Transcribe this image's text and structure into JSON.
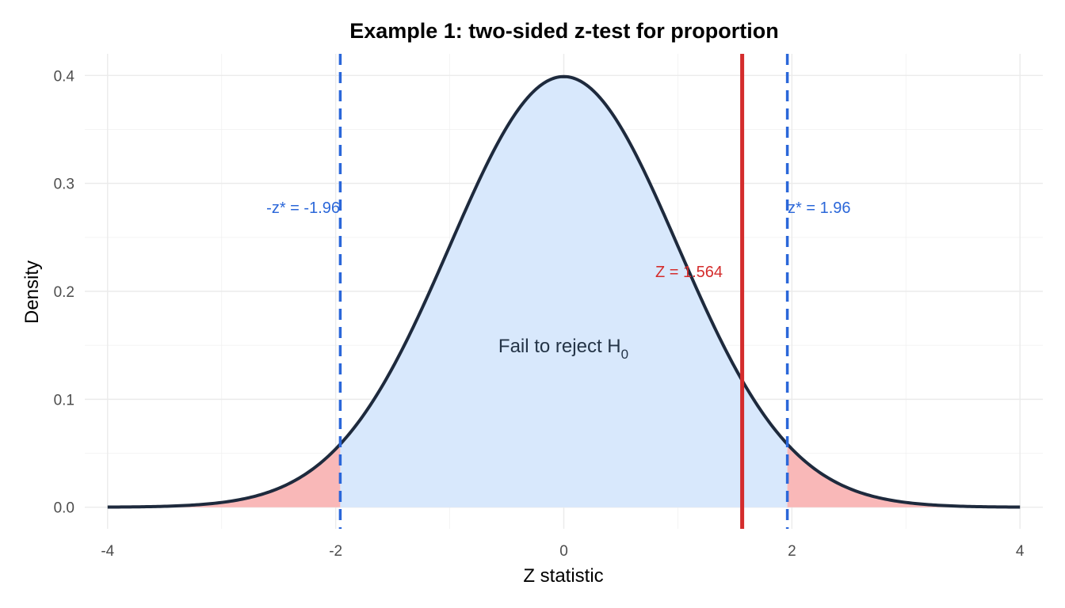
{
  "chart_data": {
    "type": "area",
    "title": "Example 1: two-sided z-test for proportion",
    "xlabel": "Z statistic",
    "ylabel": "Density",
    "xlim": [
      -4.2,
      4.2
    ],
    "ylim": [
      -0.02,
      0.42
    ],
    "x_ticks": [
      -4,
      -2,
      0,
      2,
      4
    ],
    "x_tick_labels": [
      "-4",
      "-2",
      "0",
      "2",
      "4"
    ],
    "y_ticks": [
      0.0,
      0.1,
      0.2,
      0.3,
      0.4
    ],
    "y_tick_labels": [
      "0.0",
      "0.1",
      "0.2",
      "0.3",
      "0.4"
    ],
    "grid": true,
    "legend": "none",
    "curve": {
      "distribution": "standard normal",
      "x_range": [
        -4,
        4
      ],
      "color": "#1e2a3d"
    },
    "critical_values": [
      {
        "x": -1.96,
        "label": "-z* = -1.96",
        "color": "#2b67d9",
        "style": "dashed"
      },
      {
        "x": 1.96,
        "label": "z* = 1.96",
        "color": "#2b67d9",
        "style": "dashed"
      }
    ],
    "test_statistic": {
      "x": 1.564,
      "label": "Z = 1.564",
      "color": "#d42c2c"
    },
    "regions": [
      {
        "name": "rejection-left",
        "from": -4,
        "to": -1.96,
        "color": "#f9b8b8"
      },
      {
        "name": "acceptance",
        "from": -1.96,
        "to": 1.96,
        "color": "#d8e8fc"
      },
      {
        "name": "rejection-right",
        "from": 1.96,
        "to": 4,
        "color": "#f9b8b8"
      }
    ],
    "region_label": {
      "text": "Fail to reject H",
      "subscript": "0"
    }
  }
}
